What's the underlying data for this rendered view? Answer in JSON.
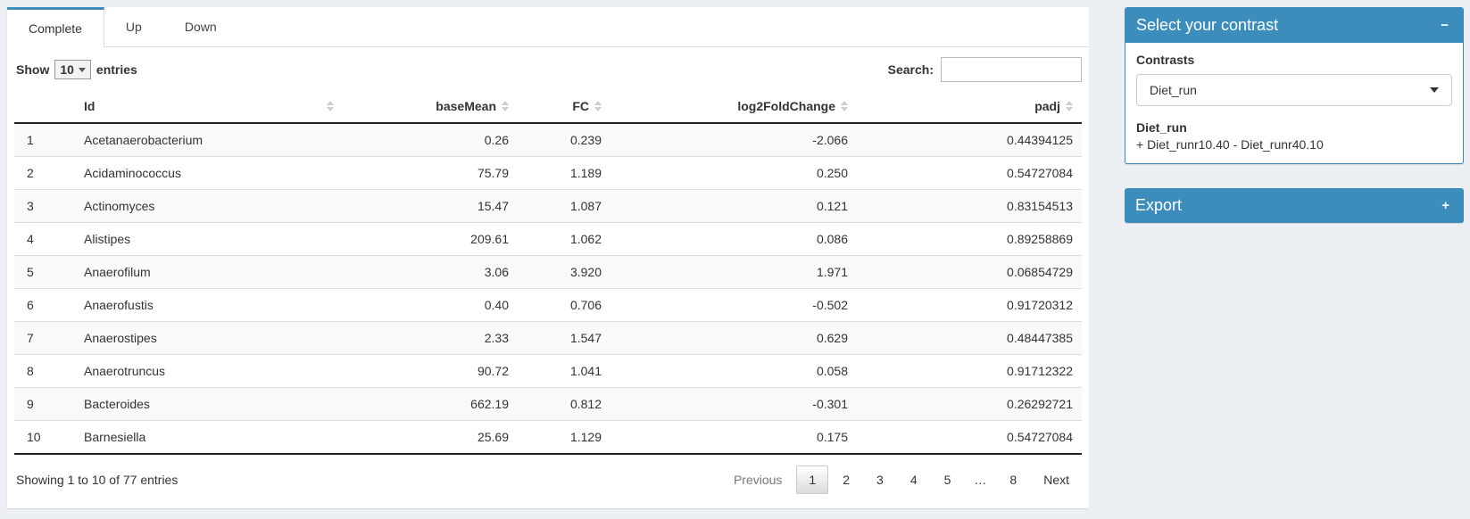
{
  "tabs": [
    {
      "label": "Complete",
      "active": true
    },
    {
      "label": "Up",
      "active": false
    },
    {
      "label": "Down",
      "active": false
    }
  ],
  "controls": {
    "show_label": "Show",
    "page_size": "10",
    "entries_label": "entries",
    "search_label": "Search:",
    "search_value": ""
  },
  "table": {
    "columns": [
      {
        "label": "",
        "sortable": false
      },
      {
        "label": "Id",
        "sortable": true
      },
      {
        "label": "baseMean",
        "sortable": true
      },
      {
        "label": "FC",
        "sortable": true
      },
      {
        "label": "log2FoldChange",
        "sortable": true
      },
      {
        "label": "padj",
        "sortable": true
      }
    ],
    "rows": [
      [
        "1",
        "Acetanaerobacterium",
        "0.26",
        "0.239",
        "-2.066",
        "0.44394125"
      ],
      [
        "2",
        "Acidaminococcus",
        "75.79",
        "1.189",
        "0.250",
        "0.54727084"
      ],
      [
        "3",
        "Actinomyces",
        "15.47",
        "1.087",
        "0.121",
        "0.83154513"
      ],
      [
        "4",
        "Alistipes",
        "209.61",
        "1.062",
        "0.086",
        "0.89258869"
      ],
      [
        "5",
        "Anaerofilum",
        "3.06",
        "3.920",
        "1.971",
        "0.06854729"
      ],
      [
        "6",
        "Anaerofustis",
        "0.40",
        "0.706",
        "-0.502",
        "0.91720312"
      ],
      [
        "7",
        "Anaerostipes",
        "2.33",
        "1.547",
        "0.629",
        "0.48447385"
      ],
      [
        "8",
        "Anaerotruncus",
        "90.72",
        "1.041",
        "0.058",
        "0.91712322"
      ],
      [
        "9",
        "Bacteroides",
        "662.19",
        "0.812",
        "-0.301",
        "0.26292721"
      ],
      [
        "10",
        "Barnesiella",
        "25.69",
        "1.129",
        "0.175",
        "0.54727084"
      ]
    ]
  },
  "footer": {
    "info": "Showing 1 to 10 of 77 entries",
    "pagination": {
      "previous_label": "Previous",
      "pages": [
        "1",
        "2",
        "3",
        "4",
        "5",
        "…",
        "8"
      ],
      "active_page": "1",
      "next_label": "Next"
    }
  },
  "sidebar": {
    "contrast_panel": {
      "title": "Select your contrast",
      "collapse_icon": "−",
      "field_label": "Contrasts",
      "selected_contrast": "Diet_run",
      "detail_title": "Diet_run",
      "detail_text": "+ Diet_runr10.40 - Diet_runr40.10"
    },
    "export_panel": {
      "title": "Export",
      "expand_icon": "+"
    }
  },
  "colors": {
    "accent": "#3c8dbc",
    "page_background": "#ecf0f5",
    "stripe": "#f9f9f9"
  }
}
